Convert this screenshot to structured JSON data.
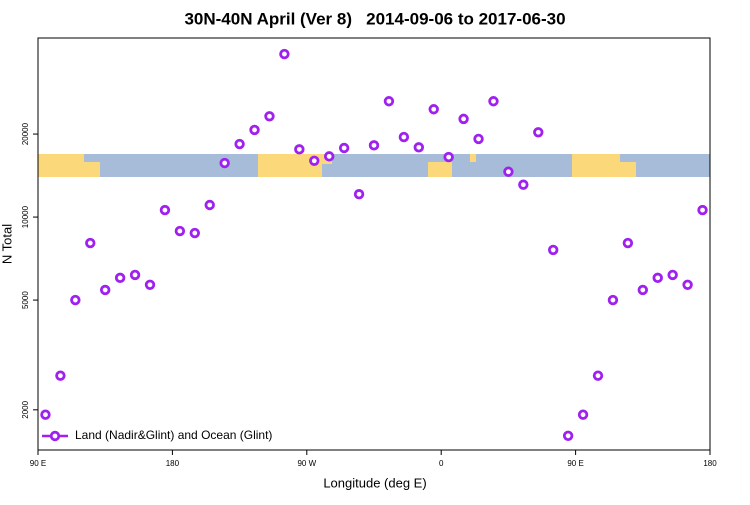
{
  "chart_data": {
    "type": "scatter",
    "title": "30N-40N April (Ver 8)   2014-09-06 to 2017-06-30",
    "xlabel": "Longitude (deg E)",
    "ylabel": "N Total",
    "y_scale": "log",
    "xlim": [
      90,
      540
    ],
    "ylim": [
      1430,
      44600
    ],
    "xticks": [
      {
        "value": 90,
        "label": "90 E"
      },
      180,
      {
        "value": 270,
        "label": "90 W"
      },
      {
        "value": 360,
        "label": "0"
      },
      {
        "value": 450,
        "label": "90 E"
      },
      {
        "value": 540,
        "label": "180"
      }
    ],
    "yticks": [
      2000,
      5000,
      10000,
      20000
    ],
    "legend": "lower left",
    "series": [
      {
        "name": "Land (Nadir&Glint) and Ocean (Glint)",
        "color": "#a020f0",
        "x": [
          95,
          105,
          115,
          125,
          135,
          145,
          155,
          165,
          175,
          185,
          195,
          205,
          215,
          225,
          235,
          245,
          255,
          265,
          275,
          285,
          295,
          305,
          315,
          325,
          335,
          345,
          355,
          365,
          375,
          385,
          395,
          405,
          415,
          425,
          435,
          445,
          455,
          465,
          475,
          485,
          495,
          505,
          515,
          525,
          535
        ],
        "values": [
          1920,
          2660,
          5000,
          8050,
          5440,
          6020,
          6170,
          5680,
          10600,
          8900,
          8750,
          11060,
          15700,
          18400,
          20700,
          23200,
          39000,
          17600,
          16000,
          16600,
          17800,
          12100,
          18200,
          26300,
          19500,
          17900,
          24600,
          16500,
          22700,
          19200,
          26300,
          14600,
          13100,
          20300,
          7600,
          1610,
          1920,
          2660,
          5000,
          8050,
          5440,
          6020,
          6170,
          5680,
          10600
        ]
      }
    ]
  }
}
